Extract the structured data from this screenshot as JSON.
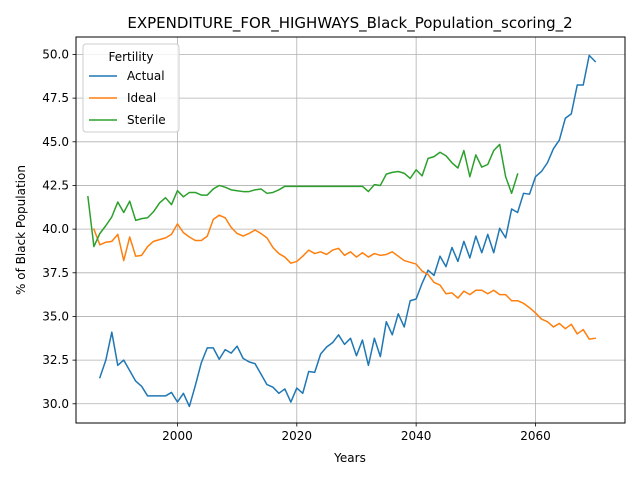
{
  "chart_data": {
    "type": "line",
    "title": "EXPENDITURE_FOR_HIGHWAYS_Black_Population_scoring_2",
    "xlabel": "Years",
    "ylabel": "% of Black Population",
    "xlim": [
      1983,
      2075
    ],
    "ylim": [
      28.9,
      51.0
    ],
    "xticks": [
      2000,
      2020,
      2040,
      2060
    ],
    "yticks": [
      30.0,
      32.5,
      35.0,
      37.5,
      40.0,
      42.5,
      45.0,
      47.5,
      50.0
    ],
    "xtick_labels": [
      "2000",
      "2020",
      "2040",
      "2060"
    ],
    "ytick_labels": [
      "30.0",
      "32.5",
      "35.0",
      "37.5",
      "40.0",
      "42.5",
      "45.0",
      "47.5",
      "50.0"
    ],
    "grid": true,
    "legend": {
      "title": "Fertility",
      "position": "top-left"
    },
    "series": [
      {
        "name": "Actual",
        "color": "#1f77b4",
        "x": [
          1987,
          1988,
          1989,
          1990,
          1991,
          1992,
          1993,
          1994,
          1995,
          1996,
          1997,
          1998,
          1999,
          2000,
          2001,
          2002,
          2003,
          2004,
          2005,
          2006,
          2007,
          2008,
          2009,
          2010,
          2011,
          2012,
          2013,
          2014,
          2015,
          2016,
          2017,
          2018,
          2019,
          2020,
          2021,
          2022,
          2023,
          2024,
          2025,
          2026,
          2027,
          2028,
          2029,
          2030,
          2031,
          2032,
          2033,
          2034,
          2035,
          2036,
          2037,
          2038,
          2039,
          2040,
          2041,
          2042,
          2043,
          2044,
          2045,
          2046,
          2047,
          2048,
          2049,
          2050,
          2051,
          2052,
          2053,
          2054,
          2055,
          2056,
          2057,
          2058,
          2059,
          2060,
          2061,
          2062,
          2063,
          2064,
          2065,
          2066,
          2067,
          2068,
          2069,
          2070
        ],
        "values": [
          31.5,
          32.5,
          34.1,
          32.2,
          32.5,
          31.9,
          31.3,
          31.0,
          30.45,
          30.45,
          30.45,
          30.45,
          30.65,
          30.1,
          30.6,
          29.85,
          31.05,
          32.35,
          33.2,
          33.2,
          32.55,
          33.1,
          32.9,
          33.3,
          32.6,
          32.4,
          32.3,
          31.7,
          31.1,
          30.95,
          30.6,
          30.85,
          30.1,
          30.9,
          30.6,
          31.85,
          31.8,
          32.85,
          33.25,
          33.5,
          33.95,
          33.4,
          33.75,
          32.75,
          33.65,
          32.2,
          33.75,
          32.7,
          34.7,
          33.95,
          35.15,
          34.4,
          35.9,
          36.0,
          36.9,
          37.65,
          37.35,
          38.45,
          37.85,
          38.95,
          38.15,
          39.3,
          38.35,
          39.6,
          38.65,
          39.7,
          38.65,
          40.05,
          39.5,
          41.15,
          40.95,
          42.05,
          42.0,
          43.0,
          43.3,
          43.8,
          44.6,
          45.1,
          46.35,
          46.6,
          48.25,
          48.25,
          49.95,
          49.6
        ]
      },
      {
        "name": "Ideal",
        "color": "#ff7f0e",
        "x": [
          1986,
          1987,
          1988,
          1989,
          1990,
          1991,
          1992,
          1993,
          1994,
          1995,
          1996,
          1997,
          1998,
          1999,
          2000,
          2001,
          2002,
          2003,
          2004,
          2005,
          2006,
          2007,
          2008,
          2009,
          2010,
          2011,
          2012,
          2013,
          2014,
          2015,
          2016,
          2017,
          2018,
          2019,
          2020,
          2021,
          2022,
          2023,
          2024,
          2025,
          2026,
          2027,
          2028,
          2029,
          2030,
          2031,
          2032,
          2033,
          2034,
          2035,
          2036,
          2037,
          2038,
          2039,
          2040,
          2041,
          2042,
          2043,
          2044,
          2045,
          2046,
          2047,
          2048,
          2049,
          2050,
          2051,
          2052,
          2053,
          2054,
          2055,
          2056,
          2057,
          2058,
          2059,
          2060,
          2061,
          2062,
          2063,
          2064,
          2065,
          2066,
          2067,
          2068,
          2069,
          2070
        ],
        "values": [
          40.0,
          39.1,
          39.25,
          39.3,
          39.7,
          38.2,
          39.55,
          38.45,
          38.5,
          39.0,
          39.3,
          39.4,
          39.5,
          39.7,
          40.3,
          39.8,
          39.55,
          39.35,
          39.35,
          39.6,
          40.55,
          40.8,
          40.65,
          40.1,
          39.75,
          39.6,
          39.75,
          39.95,
          39.75,
          39.5,
          38.95,
          38.6,
          38.4,
          38.05,
          38.15,
          38.45,
          38.8,
          38.6,
          38.7,
          38.55,
          38.8,
          38.9,
          38.5,
          38.7,
          38.4,
          38.65,
          38.4,
          38.6,
          38.5,
          38.55,
          38.7,
          38.45,
          38.2,
          38.1,
          38.0,
          37.6,
          37.4,
          36.95,
          36.8,
          36.3,
          36.35,
          36.05,
          36.45,
          36.25,
          36.5,
          36.5,
          36.3,
          36.5,
          36.25,
          36.25,
          35.9,
          35.9,
          35.75,
          35.5,
          35.2,
          34.85,
          34.7,
          34.4,
          34.6,
          34.3,
          34.55,
          34.0,
          34.25,
          33.7,
          33.75
        ]
      },
      {
        "name": "Sterile",
        "color": "#2ca02c",
        "x": [
          1985,
          1986,
          1987,
          1988,
          1989,
          1990,
          1991,
          1992,
          1993,
          1994,
          1995,
          1996,
          1997,
          1998,
          1999,
          2000,
          2001,
          2002,
          2003,
          2004,
          2005,
          2006,
          2007,
          2008,
          2009,
          2010,
          2011,
          2012,
          2013,
          2014,
          2015,
          2016,
          2017,
          2018,
          2019,
          2020,
          2021,
          2022,
          2023,
          2024,
          2025,
          2026,
          2027,
          2028,
          2029,
          2030,
          2031,
          2032,
          2033,
          2034,
          2035,
          2036,
          2037,
          2038,
          2039,
          2040,
          2041,
          2042,
          2043,
          2044,
          2045,
          2046,
          2047,
          2048,
          2049,
          2050,
          2051,
          2052,
          2053,
          2054,
          2055,
          2056,
          2057
        ],
        "values": [
          41.85,
          39.0,
          39.75,
          40.2,
          40.7,
          41.55,
          40.95,
          41.6,
          40.5,
          40.6,
          40.65,
          41.0,
          41.5,
          41.8,
          41.4,
          42.2,
          41.85,
          42.1,
          42.1,
          41.95,
          41.95,
          42.3,
          42.5,
          42.4,
          42.25,
          42.2,
          42.15,
          42.15,
          42.25,
          42.3,
          42.05,
          42.1,
          42.25,
          42.45,
          42.45,
          42.45,
          42.45,
          42.45,
          42.45,
          42.45,
          42.45,
          42.45,
          42.45,
          42.45,
          42.45,
          42.45,
          42.45,
          42.15,
          42.55,
          42.5,
          43.15,
          43.25,
          43.3,
          43.2,
          42.9,
          43.4,
          43.05,
          44.05,
          44.15,
          44.4,
          44.2,
          43.8,
          43.5,
          44.5,
          43.0,
          44.25,
          43.55,
          43.7,
          44.5,
          44.85,
          43.0,
          42.05,
          43.15
        ]
      }
    ]
  }
}
